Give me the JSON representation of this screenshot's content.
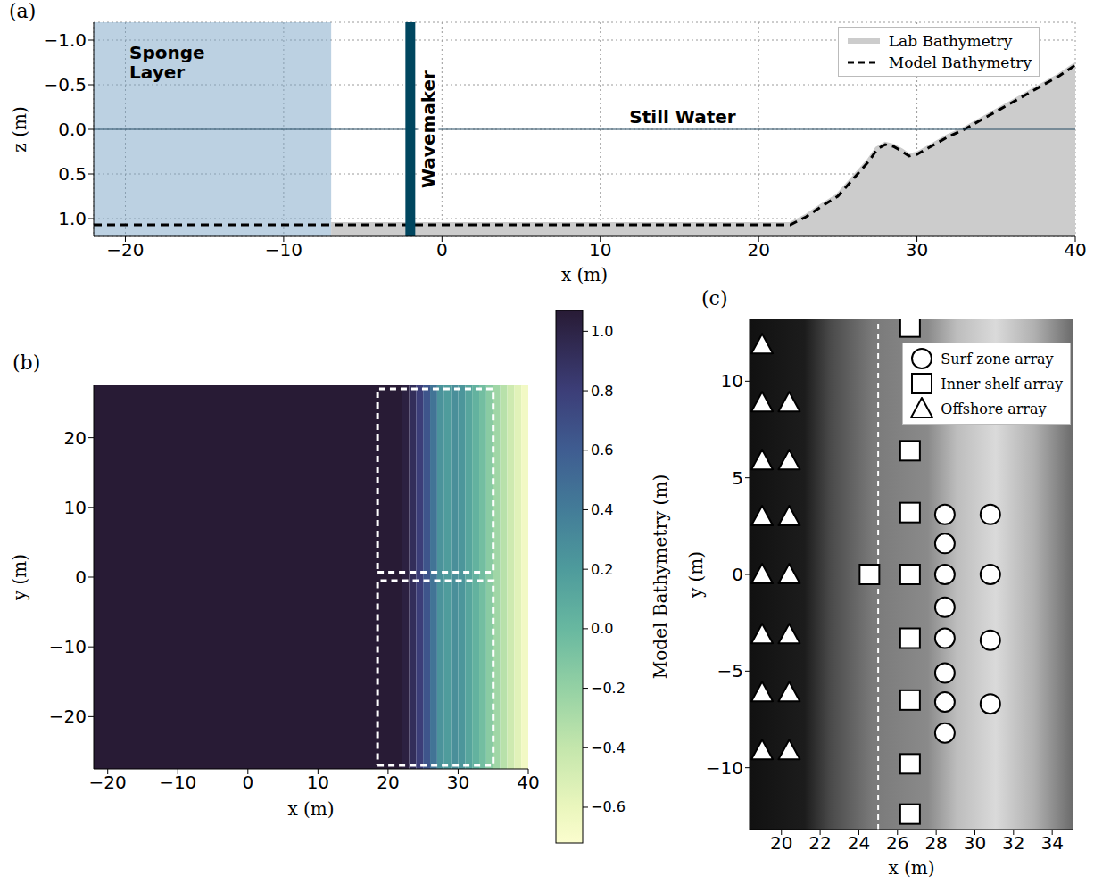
{
  "chart_data": [
    {
      "type": "line",
      "panel": "(a)",
      "xlabel": "x (m)",
      "ylabel": "z (m)",
      "xlim": [
        -22,
        40
      ],
      "ylim": [
        1.2,
        -1.2
      ],
      "xticks": [
        {
          "value": -20,
          "label": "−20"
        },
        {
          "value": -10,
          "label": "−10"
        },
        0,
        10,
        20,
        30,
        40
      ],
      "yticks": [
        {
          "value": -1,
          "label": "−1.0"
        },
        {
          "value": -0.5,
          "label": "−0.5"
        },
        {
          "value": 0,
          "label": "0.0"
        },
        {
          "value": 0.5,
          "label": "0.5"
        },
        {
          "value": 1,
          "label": "1.0"
        }
      ],
      "grid": true,
      "legend": "upper right",
      "series": [
        {
          "name": "Lab Bathymetry",
          "type": "area",
          "color": "#cccccc",
          "x": [
            -7,
            22,
            23,
            24,
            25,
            26,
            27,
            27.5,
            28,
            28.5,
            29,
            29.5,
            30,
            31,
            32,
            33,
            34,
            35,
            36,
            37,
            38,
            39,
            40
          ],
          "values": [
            1.07,
            1.07,
            0.98,
            0.86,
            0.75,
            0.55,
            0.35,
            0.22,
            0.17,
            0.19,
            0.24,
            0.3,
            0.28,
            0.18,
            0.08,
            0.0,
            -0.1,
            -0.2,
            -0.3,
            -0.4,
            -0.5,
            -0.6,
            -0.72
          ]
        },
        {
          "name": "Model Bathymetry",
          "type": "line",
          "color": "#000000",
          "line_style": "dashed",
          "x": [
            -22,
            22,
            23,
            24,
            25,
            26,
            27,
            27.5,
            28,
            28.5,
            29,
            29.5,
            30,
            31,
            32,
            33,
            34,
            35,
            36,
            37,
            38,
            39,
            40
          ],
          "values": [
            1.07,
            1.07,
            0.98,
            0.86,
            0.75,
            0.55,
            0.35,
            0.22,
            0.17,
            0.19,
            0.24,
            0.3,
            0.28,
            0.18,
            0.08,
            0.0,
            -0.1,
            -0.2,
            -0.3,
            -0.4,
            -0.5,
            -0.6,
            -0.72
          ]
        }
      ],
      "annotations": {
        "regions": [
          {
            "label": "Sponge Layer",
            "xlim": [
              -22,
              -7
            ],
            "color": "#7aa3c6"
          }
        ],
        "vlines": [
          {
            "label": "Wavemaker",
            "x": -2,
            "color": "#00465f"
          }
        ],
        "hlines": [
          {
            "label": "Still Water",
            "y": 0,
            "color": "#244a63"
          }
        ]
      }
    },
    {
      "type": "heatmap",
      "panel": "(b)",
      "xlabel": "x (m)",
      "ylabel": "y (m)",
      "xlim": [
        -22,
        40
      ],
      "ylim": [
        -27.5,
        27.5
      ],
      "xticks": [
        {
          "value": -20,
          "label": "−20"
        },
        {
          "value": -10,
          "label": "−10"
        },
        0,
        10,
        20,
        30,
        40
      ],
      "yticks": [
        {
          "value": -20,
          "label": "−20"
        },
        {
          "value": -10,
          "label": "−10"
        },
        0,
        10,
        20
      ],
      "cells": {
        "x_edges": [
          -22,
          22,
          23,
          24,
          25,
          26,
          27,
          28,
          29,
          30,
          31,
          32,
          33,
          34,
          35,
          36,
          37,
          38,
          39,
          40
        ],
        "values": [
          1.07,
          1.02,
          0.92,
          0.8,
          0.65,
          0.45,
          0.25,
          0.19,
          0.28,
          0.23,
          0.13,
          0.04,
          -0.05,
          -0.15,
          -0.25,
          -0.35,
          -0.45,
          -0.55,
          -0.66
        ]
      },
      "colorbar": {
        "label": "Model Bathymetry (m)",
        "range": [
          -0.72,
          1.07
        ],
        "ticks": [
          {
            "value": -0.6,
            "label": "−0.6"
          },
          {
            "value": -0.4,
            "label": "−0.4"
          },
          {
            "value": -0.2,
            "label": "−0.2"
          },
          {
            "value": 0,
            "label": "0.0"
          },
          0.2,
          0.4,
          0.6,
          0.8,
          {
            "value": 1,
            "label": "1.0"
          }
        ]
      },
      "boxes": [
        {
          "xlim": [
            18.5,
            35
          ],
          "ylim": [
            0.7,
            27
          ]
        },
        {
          "xlim": [
            18.5,
            35
          ],
          "ylim": [
            -27,
            -0.5
          ]
        }
      ]
    },
    {
      "type": "scatter",
      "panel": "(c)",
      "xlabel": "x (m)",
      "ylabel": "y (m)",
      "xlim": [
        18.35,
        35.1
      ],
      "ylim": [
        -13.2,
        13.2
      ],
      "xticks": [
        20,
        22,
        24,
        26,
        28,
        30,
        32,
        34
      ],
      "yticks": [
        {
          "value": -10,
          "label": "−10"
        },
        {
          "value": -5,
          "label": "−5"
        },
        0,
        5,
        10
      ],
      "legend": "upper right",
      "series": [
        {
          "name": "Surf zone array",
          "marker": "circle",
          "color": "#ffffff",
          "x": [
            28.45,
            28.45,
            28.45,
            28.45,
            28.45,
            28.45,
            28.45,
            28.45,
            30.8,
            30.8,
            30.8,
            30.8
          ],
          "values": [
            3.1,
            1.6,
            0,
            -1.7,
            -3.3,
            -5.1,
            -6.6,
            -8.2,
            3.1,
            0,
            -3.4,
            -6.7
          ]
        },
        {
          "name": "Inner shelf array",
          "marker": "square",
          "color": "#ffffff",
          "x": [
            26.65,
            26.65,
            26.65,
            26.65,
            26.65,
            26.65,
            26.65,
            26.65,
            24.55
          ],
          "values": [
            12.8,
            6.4,
            3.2,
            0,
            -3.3,
            -6.5,
            -9.8,
            -12.4,
            0
          ]
        },
        {
          "name": "Offshore array",
          "marker": "triangle",
          "color": "#ffffff",
          "x": [
            19.0,
            19.0,
            19.0,
            19.0,
            19.0,
            19.0,
            19.0,
            19.0,
            20.4,
            20.4,
            20.4,
            20.4,
            20.4,
            20.4,
            20.4
          ],
          "values": [
            11.9,
            8.9,
            5.9,
            3.0,
            0,
            -3.1,
            -6.1,
            -9.1,
            8.9,
            5.9,
            3.0,
            0,
            -3.1,
            -6.1,
            -9.1
          ]
        }
      ],
      "annotations": {
        "vlines": [
          {
            "x": 25,
            "color": "#ffffff",
            "line_style": "dashed"
          }
        ]
      }
    }
  ]
}
